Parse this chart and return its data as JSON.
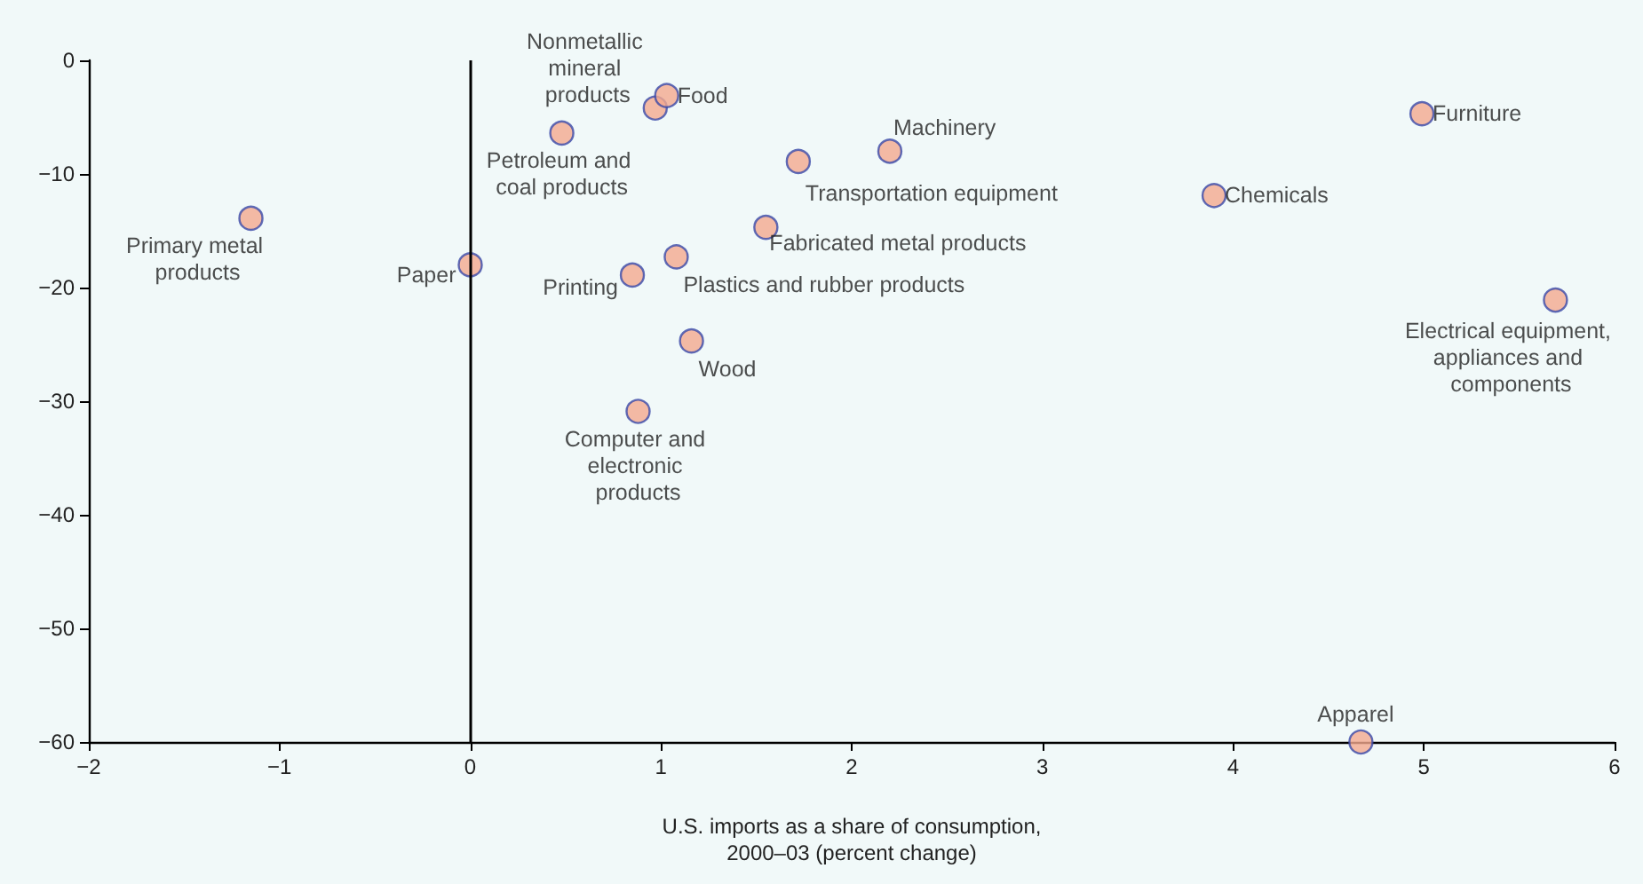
{
  "chart_data": {
    "type": "scatter",
    "xlabel": "U.S. imports as a share of consumption, 2000–03 (percent change)",
    "x": [
      -1.15,
      0,
      0.48,
      0.97,
      1.03,
      0.85,
      1.08,
      1.16,
      0.88,
      1.72,
      1.55,
      2.2,
      3.9,
      4.99,
      5.69,
      4.67
    ],
    "series": [
      {
        "color": "#f4a98f",
        "values": [
          -13.9,
          -18,
          -6.4,
          -4.2,
          -3.1,
          -18.9,
          -17.3,
          -24.7,
          -30.9,
          -8.9,
          -14.7,
          -8,
          -11.9,
          -4.7,
          -21.1,
          -60
        ]
      }
    ],
    "annotations": [
      {
        "text": "Primary metal products",
        "x": -1.15,
        "y": -13.9
      },
      {
        "text": "Paper",
        "x": 0,
        "y": -18
      },
      {
        "text": "Petroleum and coal products",
        "x": 0.48,
        "y": -6.4
      },
      {
        "text": "Nonmetallic mineral products",
        "x": 0.97,
        "y": -4.2
      },
      {
        "text": "Food",
        "x": 1.03,
        "y": -3.1
      },
      {
        "text": "Printing",
        "x": 0.85,
        "y": -18.9
      },
      {
        "text": "Plastics and rubber products",
        "x": 1.08,
        "y": -17.3
      },
      {
        "text": "Wood",
        "x": 1.16,
        "y": -24.7
      },
      {
        "text": "Computer and electronic products",
        "x": 0.88,
        "y": -30.9
      },
      {
        "text": "Transportation equipment",
        "x": 1.72,
        "y": -8.9
      },
      {
        "text": "Fabricated metal products",
        "x": 1.55,
        "y": -14.7
      },
      {
        "text": "Machinery",
        "x": 2.2,
        "y": -8
      },
      {
        "text": "Chemicals",
        "x": 3.9,
        "y": -11.9
      },
      {
        "text": "Furniture",
        "x": 4.99,
        "y": -4.7
      },
      {
        "text": "Electrical equipment, appliances and components",
        "x": 5.69,
        "y": -21.1
      },
      {
        "text": "Apparel",
        "x": 4.67,
        "y": -60
      }
    ],
    "ref_lines": [
      {
        "axis": "x",
        "value": 0,
        "color": "#000000"
      }
    ],
    "xlim": [
      -2,
      6
    ],
    "xticks": [
      -2,
      -1,
      0,
      1,
      2,
      3,
      4,
      5,
      6
    ],
    "ylim": [
      -60,
      0
    ],
    "yticks": [
      -60,
      -50,
      -40,
      -30,
      -20,
      -10,
      0
    ],
    "marker": "circle"
  }
}
